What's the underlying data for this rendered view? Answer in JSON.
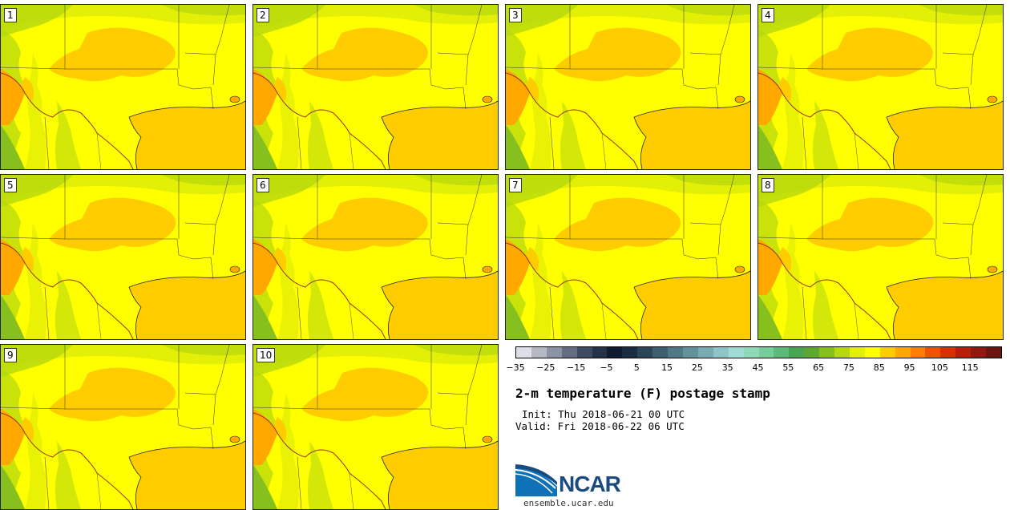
{
  "panels": [
    {
      "label": "1"
    },
    {
      "label": "2"
    },
    {
      "label": "3"
    },
    {
      "label": "4"
    },
    {
      "label": "5"
    },
    {
      "label": "6"
    },
    {
      "label": "7"
    },
    {
      "label": "8"
    },
    {
      "label": "9"
    },
    {
      "label": "10"
    }
  ],
  "colorbar": {
    "colors": [
      "#dcdfe6",
      "#b4b9c4",
      "#8c93a3",
      "#646e82",
      "#3d4a61",
      "#24324a",
      "#101b30",
      "#1a2b42",
      "#2c4658",
      "#3e5f6e",
      "#517985",
      "#64929b",
      "#79acb1",
      "#8fc5c6",
      "#9fdcd4",
      "#8ed8b8",
      "#76cc9a",
      "#5eb87a",
      "#4aa552",
      "#5ea832",
      "#86bf1e",
      "#b5d80e",
      "#e3ef06",
      "#ffff00",
      "#ffcc00",
      "#ffa800",
      "#ff7f00",
      "#f05200",
      "#d93000",
      "#b81f0a",
      "#8f190f",
      "#6b1510"
    ],
    "tick_labels": [
      "-35",
      "-25",
      "-15",
      "-5",
      "5",
      "15",
      "25",
      "35",
      "45",
      "55",
      "65",
      "75",
      "85",
      "95",
      "105",
      "115"
    ]
  },
  "title": "2-m temperature (F) postage stamp",
  "init_text": "Init: Thu 2018-06-21 00 UTC",
  "valid_text": "Valid: Fri 2018-06-22 06 UTC",
  "logo_text": "NCAR",
  "url_text": "ensemble.ucar.edu",
  "map_colors": {
    "land": "#ffff00",
    "warm": "#ffcc00",
    "hot": "#ffa800",
    "cool": "#e3ef06",
    "green": "#b5d80e",
    "dkgreen": "#86bf1e",
    "gulf": "#ffcc00",
    "border": "#333333",
    "river": "#993300"
  }
}
